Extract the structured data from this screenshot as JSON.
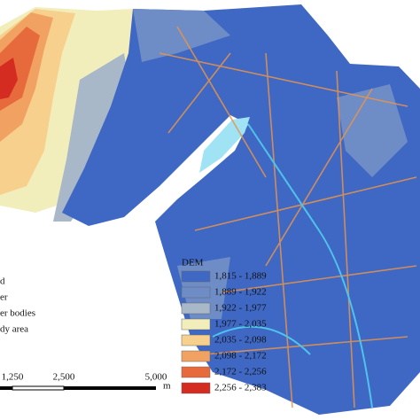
{
  "legend_left": {
    "items": [
      "d",
      "er",
      "er bodies",
      "dy area"
    ]
  },
  "dem_legend": {
    "title": "DEM",
    "classes": [
      {
        "label": "1,815 - 1,889",
        "color": "#3f68c4"
      },
      {
        "label": "1,889 - 1,922",
        "color": "#6e8cc6"
      },
      {
        "label": "1,922 - 1,977",
        "color": "#a8b8c8"
      },
      {
        "label": "1,977 - 2,035",
        "color": "#f2eebc"
      },
      {
        "label": "2,035 - 2,098",
        "color": "#f6d08c"
      },
      {
        "label": "2,098 - 2,172",
        "color": "#f1a262"
      },
      {
        "label": "2,172 - 2,256",
        "color": "#e76a3c"
      },
      {
        "label": "2,256 - 2,383",
        "color": "#d42c20"
      }
    ]
  },
  "scale_bar": {
    "labels": [
      "1,250",
      "2,500",
      "5,000"
    ],
    "unit": "m"
  }
}
